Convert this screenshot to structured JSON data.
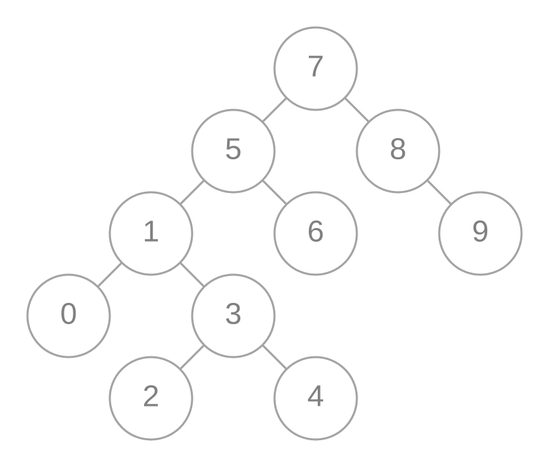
{
  "tree": {
    "root": "7",
    "nodes": [
      {
        "id": "7",
        "label": "7"
      },
      {
        "id": "5",
        "label": "5"
      },
      {
        "id": "8",
        "label": "8"
      },
      {
        "id": "1",
        "label": "1"
      },
      {
        "id": "6",
        "label": "6"
      },
      {
        "id": "9",
        "label": "9"
      },
      {
        "id": "0",
        "label": "0"
      },
      {
        "id": "3",
        "label": "3"
      },
      {
        "id": "2",
        "label": "2"
      },
      {
        "id": "4",
        "label": "4"
      }
    ],
    "edges": [
      {
        "from": "7",
        "to": "5"
      },
      {
        "from": "7",
        "to": "8"
      },
      {
        "from": "5",
        "to": "1"
      },
      {
        "from": "5",
        "to": "6"
      },
      {
        "from": "8",
        "to": "9"
      },
      {
        "from": "1",
        "to": "0"
      },
      {
        "from": "1",
        "to": "3"
      },
      {
        "from": "3",
        "to": "2"
      },
      {
        "from": "3",
        "to": "4"
      }
    ],
    "colors": {
      "stroke": "#a3a3a3",
      "text": "#808080",
      "background": "#ffffff"
    }
  }
}
